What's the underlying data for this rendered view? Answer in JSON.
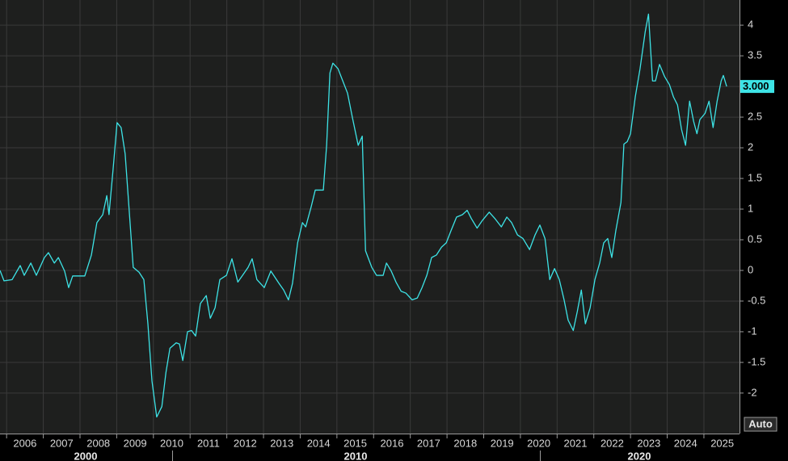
{
  "chart_data": {
    "type": "line",
    "x": [
      2005.82,
      2005.93,
      2006.15,
      2006.37,
      2006.48,
      2006.66,
      2006.81,
      2007.03,
      2007.14,
      2007.3,
      2007.41,
      2007.58,
      2007.69,
      2007.8,
      2008.13,
      2008.31,
      2008.46,
      2008.62,
      2008.73,
      2008.79,
      2008.9,
      2009.01,
      2009.12,
      2009.23,
      2009.34,
      2009.45,
      2009.61,
      2009.74,
      2009.85,
      2009.96,
      2010.09,
      2010.23,
      2010.34,
      2010.45,
      2010.62,
      2010.71,
      2010.8,
      2010.93,
      2011.04,
      2011.15,
      2011.28,
      2011.44,
      2011.55,
      2011.68,
      2011.81,
      2011.99,
      2012.14,
      2012.3,
      2012.43,
      2012.58,
      2012.69,
      2012.82,
      2013.02,
      2013.2,
      2013.42,
      2013.55,
      2013.68,
      2013.79,
      2013.93,
      2014.06,
      2014.15,
      2014.3,
      2014.41,
      2014.63,
      2014.72,
      2014.81,
      2014.89,
      2015.03,
      2015.16,
      2015.29,
      2015.42,
      2015.58,
      2015.69,
      2015.78,
      2015.95,
      2016.08,
      2016.26,
      2016.35,
      2016.48,
      2016.61,
      2016.75,
      2016.88,
      2017.05,
      2017.19,
      2017.32,
      2017.45,
      2017.58,
      2017.71,
      2017.85,
      2017.98,
      2018.11,
      2018.26,
      2018.42,
      2018.55,
      2018.66,
      2018.82,
      2018.97,
      2019.15,
      2019.3,
      2019.48,
      2019.63,
      2019.76,
      2019.92,
      2020.07,
      2020.25,
      2020.4,
      2020.53,
      2020.67,
      2020.8,
      2020.93,
      2021.06,
      2021.19,
      2021.3,
      2021.44,
      2021.55,
      2021.66,
      2021.77,
      2021.9,
      2022.03,
      2022.16,
      2022.27,
      2022.38,
      2022.49,
      2022.6,
      2022.74,
      2022.82,
      2022.91,
      2023.0,
      2023.13,
      2023.26,
      2023.4,
      2023.49,
      2023.6,
      2023.68,
      2023.79,
      2023.93,
      2024.06,
      2024.17,
      2024.28,
      2024.39,
      2024.5,
      2024.61,
      2024.72,
      2024.81,
      2024.89,
      2025.03,
      2025.14,
      2025.25,
      2025.36,
      2025.47,
      2025.53,
      2025.62
    ],
    "series": [
      {
        "color": "#3de3e6",
        "values": [
          0.0,
          -0.17,
          -0.15,
          0.08,
          -0.08,
          0.12,
          -0.08,
          0.21,
          0.29,
          0.12,
          0.21,
          -0.01,
          -0.28,
          -0.09,
          -0.09,
          0.25,
          0.78,
          0.91,
          1.22,
          0.91,
          1.64,
          2.41,
          2.33,
          1.9,
          0.98,
          0.05,
          -0.03,
          -0.15,
          -0.87,
          -1.8,
          -2.39,
          -2.22,
          -1.67,
          -1.27,
          -1.18,
          -1.2,
          -1.47,
          -1.0,
          -0.98,
          -1.07,
          -0.54,
          -0.41,
          -0.78,
          -0.61,
          -0.15,
          -0.08,
          0.19,
          -0.19,
          -0.08,
          0.05,
          0.19,
          -0.15,
          -0.28,
          -0.01,
          -0.21,
          -0.32,
          -0.48,
          -0.21,
          0.45,
          0.78,
          0.71,
          1.04,
          1.31,
          1.31,
          2.04,
          3.22,
          3.38,
          3.29,
          3.09,
          2.89,
          2.5,
          2.04,
          2.19,
          0.32,
          0.05,
          -0.08,
          -0.08,
          0.12,
          -0.01,
          -0.19,
          -0.34,
          -0.37,
          -0.48,
          -0.45,
          -0.28,
          -0.08,
          0.21,
          0.25,
          0.38,
          0.45,
          0.65,
          0.87,
          0.91,
          0.98,
          0.85,
          0.69,
          0.82,
          0.95,
          0.85,
          0.71,
          0.87,
          0.78,
          0.58,
          0.52,
          0.34,
          0.58,
          0.74,
          0.52,
          -0.15,
          0.03,
          -0.15,
          -0.48,
          -0.81,
          -0.98,
          -0.67,
          -0.32,
          -0.87,
          -0.61,
          -0.15,
          0.12,
          0.45,
          0.52,
          0.21,
          0.65,
          1.11,
          2.06,
          2.1,
          2.23,
          2.83,
          3.29,
          3.89,
          4.18,
          3.09,
          3.09,
          3.36,
          3.16,
          3.03,
          2.83,
          2.7,
          2.3,
          2.04,
          2.76,
          2.43,
          2.23,
          2.46,
          2.56,
          2.76,
          2.33,
          2.76,
          3.09,
          3.18,
          3.0
        ]
      }
    ],
    "last_value": 3.0,
    "last_value_label": "3.000",
    "xlim": [
      2005.82,
      2025.97
    ],
    "xticks": [
      2006,
      2007,
      2008,
      2009,
      2010,
      2011,
      2012,
      2013,
      2014,
      2015,
      2016,
      2017,
      2018,
      2019,
      2020,
      2021,
      2022,
      2023,
      2024,
      2025
    ],
    "decades": [
      2000,
      2010,
      2020
    ],
    "ylim": [
      -2.66,
      4.41
    ],
    "yticks": [
      4,
      3.5,
      3,
      2.5,
      2,
      1.5,
      1,
      0.5,
      0,
      -0.5,
      -1,
      -1.5,
      -2
    ],
    "grid": true,
    "button": "Auto"
  }
}
